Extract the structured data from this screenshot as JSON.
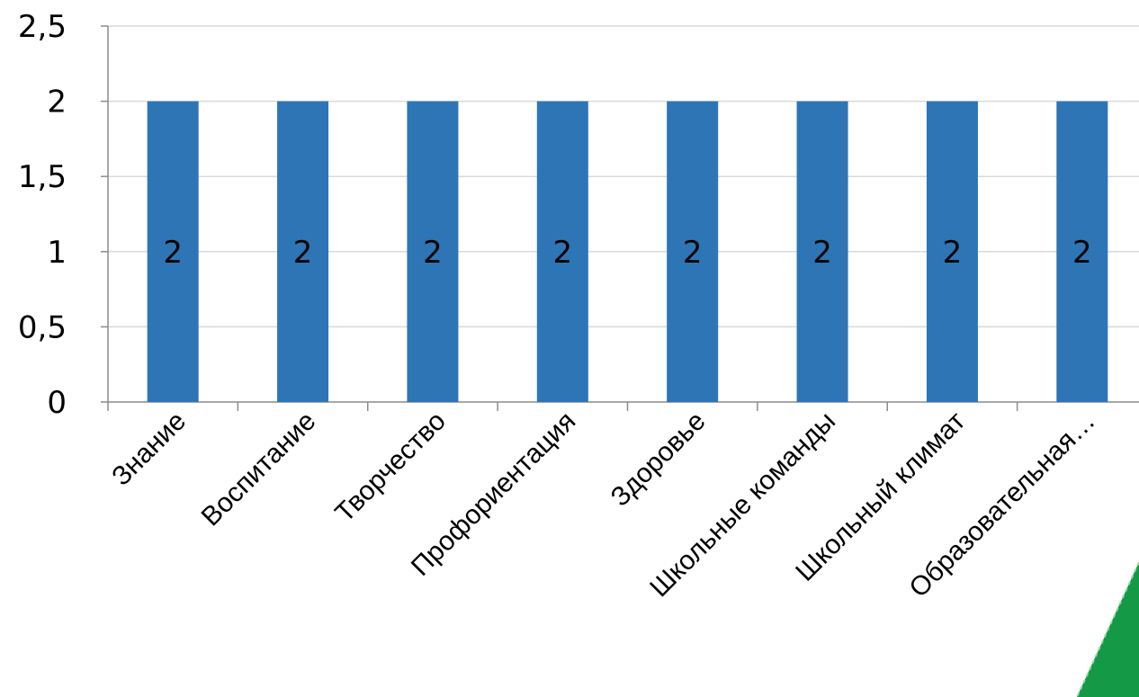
{
  "chart_data": {
    "type": "bar",
    "categories": [
      "Знание",
      "Воспитание",
      "Творчество",
      "Профориентация",
      "Здоровье",
      "Школьные команды",
      "Школьный климат",
      "Образовательная…"
    ],
    "values": [
      2,
      2,
      2,
      2,
      2,
      2,
      2,
      2
    ],
    "data_labels": [
      "2",
      "2",
      "2",
      "2",
      "2",
      "2",
      "2",
      "2"
    ],
    "ylim": [
      0,
      2.5
    ],
    "yticks": [
      0,
      0.5,
      1,
      1.5,
      2,
      2.5
    ],
    "ytick_labels": [
      "0",
      "0,5",
      "1",
      "1,5",
      "2",
      "2,5"
    ],
    "grid": true,
    "legend": "none",
    "title": "",
    "xlabel": "",
    "ylabel": ""
  },
  "colors": {
    "bar": "#2e75b6",
    "grid": "#d9d9d9",
    "axis": "#8c8c8c",
    "corner_accent": "#149a47"
  },
  "decoration": {
    "corner_icon": "green-triangle-corner-icon"
  }
}
